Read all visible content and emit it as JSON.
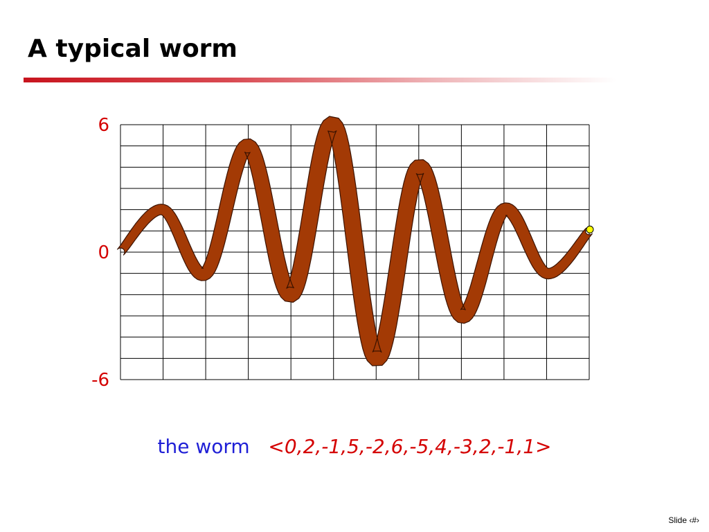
{
  "slide": {
    "title": "A typical worm",
    "caption_lead": "the worm",
    "caption_sequence": "<0,2,-1,5,-2,6,-5,4,-3,2,-1,1>",
    "footer": "Slide ‹#›"
  },
  "colors": {
    "worm_body": "#a33a05",
    "worm_outline": "#3a1200",
    "worm_head": "#ffff00",
    "tick_label": "#d40000",
    "caption_lead": "#1f1fd6",
    "caption_sequence": "#d40000",
    "grid": "#000000"
  },
  "chart_data": {
    "type": "line",
    "x": [
      0,
      1,
      2,
      3,
      4,
      5,
      6,
      7,
      8,
      9,
      10,
      11
    ],
    "series": [
      {
        "values": [
          0,
          2,
          -1,
          5,
          -2,
          6,
          -5,
          4,
          -3,
          2,
          -1,
          1
        ]
      }
    ],
    "ylim": [
      -6,
      6
    ],
    "xlim": [
      0,
      11
    ],
    "ytick_labels": [
      {
        "value": 6,
        "label": "6"
      },
      {
        "value": 0,
        "label": "0"
      },
      {
        "value": -6,
        "label": "-6"
      }
    ],
    "grid": true,
    "grid_columns": 11,
    "grid_rows": 12,
    "legend": "none"
  }
}
